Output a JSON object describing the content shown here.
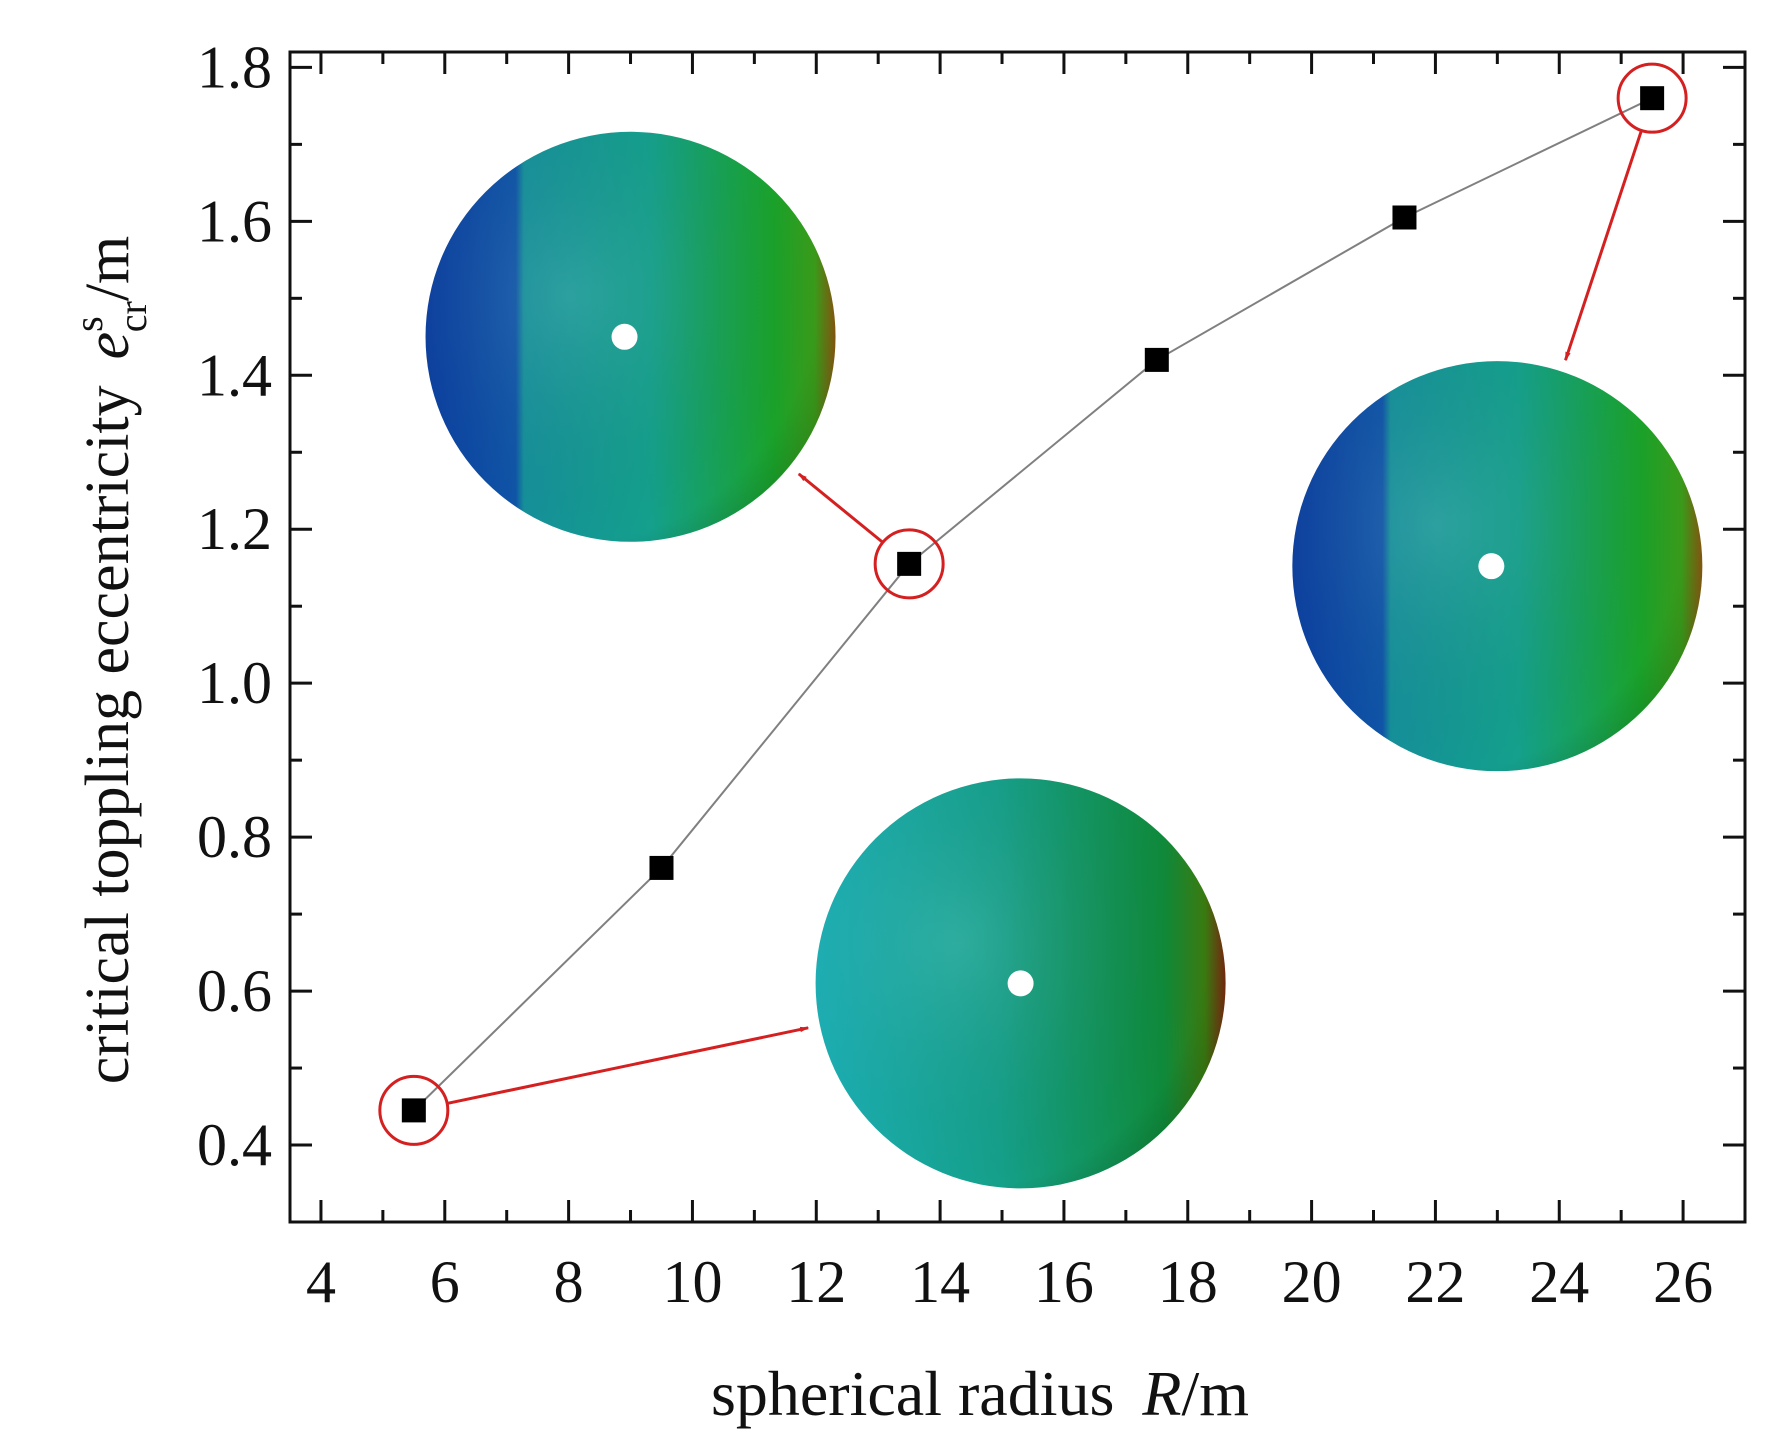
{
  "chart_data": {
    "type": "scatter",
    "title": "",
    "xlabel": {
      "prefix": "spherical radius",
      "symbol": "R",
      "unit": "/m"
    },
    "ylabel": {
      "prefix": "critical toppling eccentricity",
      "symbol": "e",
      "superscript": "s",
      "subscript": "cr",
      "unit": "/m"
    },
    "xlim": [
      3.5,
      27
    ],
    "ylim": [
      0.3,
      1.82
    ],
    "xticks": [
      4,
      6,
      8,
      10,
      12,
      14,
      16,
      18,
      20,
      22,
      24,
      26
    ],
    "yticks": [
      0.4,
      0.6,
      0.8,
      1.0,
      1.2,
      1.4,
      1.6,
      1.8
    ],
    "xtick_labels": [
      "4",
      "6",
      "8",
      "10",
      "12",
      "14",
      "16",
      "18",
      "20",
      "22",
      "24",
      "26"
    ],
    "ytick_labels": [
      "0.4",
      "0.6",
      "0.8",
      "1.0",
      "1.2",
      "1.4",
      "1.6",
      "1.8"
    ],
    "grid": false,
    "series": [
      {
        "x": [
          5.5,
          9.5,
          13.5,
          17.5,
          21.5,
          25.5
        ],
        "y": [
          0.445,
          0.76,
          1.155,
          1.42,
          1.605,
          1.76
        ],
        "marker": "square",
        "line": true,
        "color": "#000000",
        "line_color": "#808080"
      }
    ],
    "highlighted_points": [
      0,
      2,
      5
    ],
    "highlight_color": "#d42020",
    "insets": [
      {
        "point_index": 0,
        "icon": "sphere-contour-inset",
        "center": [
          15.3,
          0.61
        ]
      },
      {
        "point_index": 2,
        "icon": "sphere-contour-inset",
        "center": [
          9.0,
          1.45
        ]
      },
      {
        "point_index": 5,
        "icon": "sphere-contour-inset",
        "center": [
          23.0,
          1.152
        ]
      }
    ]
  }
}
